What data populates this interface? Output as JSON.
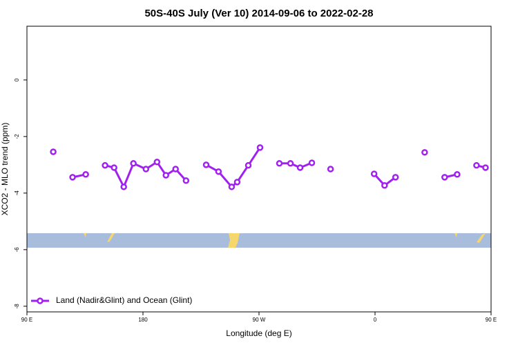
{
  "chart_data": {
    "type": "line",
    "title": "50S-40S July (Ver 10)   2014-09-06 to 2022-02-28",
    "x_label": "Longitude (deg E)",
    "y_label": "XCO2 - MLO trend (ppm)",
    "xlim": [
      90,
      450
    ],
    "ylim": [
      -8.2,
      1.9
    ],
    "xticks": [
      {
        "value": 90,
        "label": "90 E"
      },
      {
        "value": 180,
        "label": "180"
      },
      {
        "value": 270,
        "label": "90 W"
      },
      {
        "value": 360,
        "label": "0"
      },
      {
        "value": 450,
        "label": "90 E"
      }
    ],
    "xticks_extra": null,
    "yticks": [
      0,
      -2,
      -4,
      -6,
      -8
    ],
    "legend": "bottom-left",
    "series": [
      {
        "name": "Land (Nadir&Glint) and Ocean (Glint)",
        "color": "#a020f0",
        "x": [
          110.4,
          null,
          125.4,
          135.6,
          null,
          150.6,
          157.6,
          165.1,
          172.6,
          182.3,
          190.9,
          197.8,
          205.3,
          213.4,
          null,
          229,
          238.6,
          248.8,
          253.1,
          261.7,
          270.8,
          null,
          285.8,
          294.4,
          301.9,
          311,
          null,
          325.5,
          null,
          359.3,
          367.4,
          375.9,
          null,
          398.5,
          null,
          414,
          423.7,
          null,
          438.7,
          445.7
        ],
        "values": [
          -2.54,
          null,
          -3.44,
          -3.34,
          null,
          -3.02,
          -3.1,
          -3.78,
          -2.95,
          -3.15,
          -2.9,
          -3.37,
          -3.15,
          -3.56,
          null,
          -3.0,
          -3.24,
          -3.78,
          -3.61,
          -3.02,
          -2.39,
          null,
          -2.95,
          -2.95,
          -3.1,
          -2.93,
          null,
          -3.15,
          null,
          -3.32,
          -3.73,
          -3.44,
          null,
          -2.56,
          null,
          -3.44,
          -3.34,
          null,
          -3.02,
          -3.1
        ]
      }
    ]
  }
}
